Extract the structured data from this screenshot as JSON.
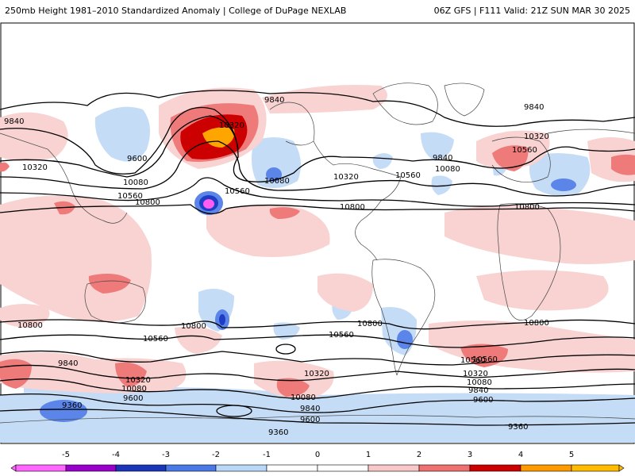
{
  "header": {
    "left": "250mb Height 1981–2010 Standardized Anomaly | College of DuPage NEXLAB",
    "right": "06Z GFS | F111 Valid: 21Z SUN MAR 30 2025"
  },
  "colorbar": {
    "ticks": [
      "-5",
      "-4",
      "-3",
      "-2",
      "-1",
      "0",
      "1",
      "2",
      "3",
      "4",
      "5"
    ],
    "colors": [
      "#ff66ff",
      "#9900cc",
      "#1a35b8",
      "#4a78e6",
      "#b8d8f5",
      "#ffffff",
      "#ffffff",
      "#f8c8c8",
      "#ee7070",
      "#cc0000",
      "#ff9900",
      "#ffbb00"
    ]
  },
  "map": {
    "contour_labels": [
      "9840",
      "9840",
      "10320",
      "9600",
      "10080",
      "10560",
      "10800",
      "10320",
      "10560",
      "10080",
      "9840",
      "10320",
      "10560",
      "10800",
      "9840",
      "10080",
      "10320",
      "10560",
      "10800",
      "10800",
      "10800",
      "10560",
      "10800",
      "10560",
      "10800",
      "10560",
      "9840",
      "10320",
      "10080",
      "9600",
      "9360",
      "10320",
      "10080",
      "9840",
      "9600",
      "9360",
      "10560",
      "10320",
      "10080",
      "9840",
      "9600",
      "9360"
    ],
    "colors": {
      "neg_light": "#c5dcf6",
      "neg_mid": "#5b85e8",
      "neg_strong": "#1f3dc4",
      "neg_extreme": "#ff5cf0",
      "pos_light": "#f9d2d2",
      "pos_mid": "#ee7a7a",
      "pos_strong": "#cc0000",
      "pos_extreme": "#ffa500"
    }
  }
}
